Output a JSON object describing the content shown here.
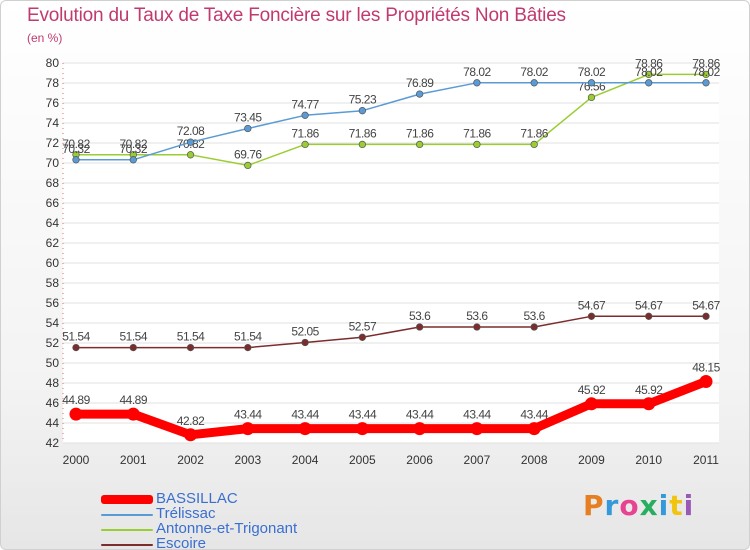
{
  "title": "Evolution du Taux de Taxe Foncière sur les Propriétés Non Bâties",
  "subtitle": "(en %)",
  "logo": {
    "letters": [
      "P",
      "r",
      "o",
      "x",
      "i",
      "t",
      "i"
    ],
    "colors": [
      "#e67e22",
      "#3498db",
      "#e84393",
      "#27ae60",
      "#3498db",
      "#f1c40f",
      "#9b59b6"
    ]
  },
  "chart_data": {
    "type": "line",
    "categories": [
      "2000",
      "2001",
      "2002",
      "2003",
      "2004",
      "2005",
      "2006",
      "2007",
      "2008",
      "2009",
      "2010",
      "2011"
    ],
    "ylim": [
      42,
      80
    ],
    "yticks": [
      42,
      44,
      46,
      48,
      50,
      52,
      54,
      56,
      58,
      60,
      62,
      64,
      66,
      68,
      70,
      72,
      74,
      76,
      78,
      80
    ],
    "grid": "horizontal",
    "legend_position": "bottom-left",
    "series": [
      {
        "name": "BASSILLAC",
        "color": "#ff0000",
        "values": [
          44.89,
          44.89,
          42.82,
          43.44,
          43.44,
          43.44,
          43.44,
          43.44,
          43.44,
          45.92,
          45.92,
          48.15
        ],
        "labels": [
          "44.89",
          "44.89",
          "42.82",
          "43.44",
          "43.44",
          "43.44",
          "43.44",
          "43.44",
          "43.44",
          "45.92",
          "45.92",
          "48.15"
        ]
      },
      {
        "name": "Trélissac",
        "color": "#5b9bd5",
        "values": [
          70.32,
          70.32,
          72.08,
          73.45,
          74.77,
          75.23,
          76.89,
          78.02,
          78.02,
          78.02,
          78.02,
          78.02
        ],
        "labels": [
          "70.32",
          "70.32",
          "72.08",
          "73.45",
          "74.77",
          "75.23",
          "76.89",
          "78.02",
          "78.02",
          "78.02",
          "78.02",
          "78.02"
        ]
      },
      {
        "name": "Antonne-et-Trigonant",
        "color": "#9acd32",
        "values": [
          70.82,
          70.82,
          70.82,
          69.76,
          71.86,
          71.86,
          71.86,
          71.86,
          71.86,
          76.56,
          78.86,
          78.86
        ],
        "labels": [
          "70.82",
          "70.82",
          "70.82",
          "69.76",
          "71.86",
          "71.86",
          "71.86",
          "71.86",
          "71.86",
          "76.56",
          "78.86",
          "78.86"
        ]
      },
      {
        "name": "Escoire",
        "color": "#7b2d2d",
        "values": [
          51.54,
          51.54,
          51.54,
          51.54,
          52.05,
          52.57,
          53.6,
          53.6,
          53.6,
          54.67,
          54.67,
          54.67
        ],
        "labels": [
          "51.54",
          "51.54",
          "51.54",
          "51.54",
          "52.05",
          "52.57",
          "53.6",
          "53.6",
          "53.6",
          "54.67",
          "54.67",
          "54.67"
        ]
      }
    ]
  }
}
